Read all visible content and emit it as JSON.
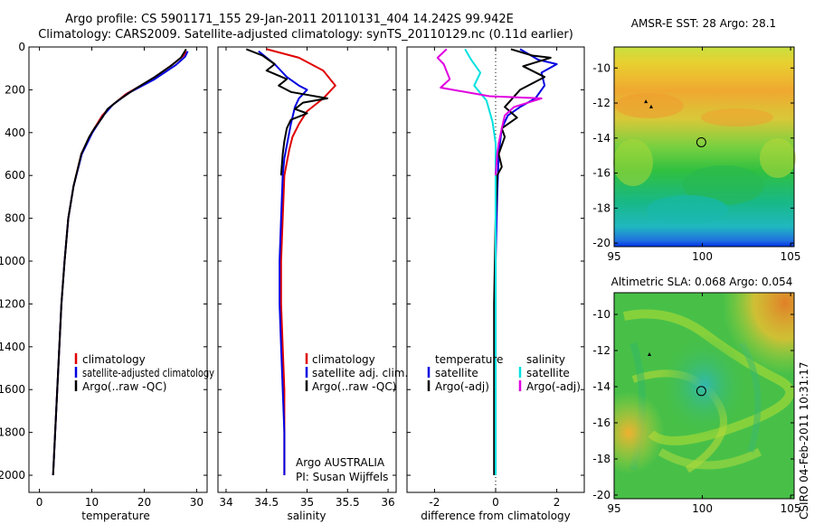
{
  "figure": {
    "title_line1": "Argo profile: CS 5901171_155 29-Jan-2011 20110131_404 14.242S 99.942E",
    "title_line2": "Climatology: CARS2009. Satellite-adjusted climatology: synTS_20110129.nc (0.11d earlier)",
    "credit": "CSIRO 04-Feb-2011 10:31:17",
    "argo_label": "Argo AUSTRALIA",
    "pi_label": "PI: Susan Wijffels"
  },
  "colors": {
    "red": "#e00000",
    "blue": "#0000e0",
    "black": "#000000",
    "cyan": "#00e0e0",
    "magenta": "#e000e0"
  },
  "chart_data": [
    {
      "id": "temperature",
      "type": "line",
      "xlabel": "temperature",
      "xlim": [
        -2,
        32
      ],
      "ylim": [
        0,
        2080
      ],
      "xticks": [
        0,
        10,
        20,
        30
      ],
      "yticks": [
        0,
        200,
        400,
        600,
        800,
        1000,
        1200,
        1400,
        1600,
        1800,
        2000
      ],
      "legend": [
        "climatology",
        "satellite-adjusted climatology",
        "Argo(..raw -QC)"
      ],
      "series": [
        {
          "name": "climatology",
          "color": "red",
          "points": [
            [
              28.0,
              20
            ],
            [
              27.5,
              40
            ],
            [
              25.5,
              80
            ],
            [
              21.5,
              150
            ],
            [
              16.5,
              220
            ],
            [
              13.5,
              280
            ],
            [
              12.0,
              320
            ],
            [
              10.0,
              400
            ],
            [
              8.0,
              500
            ],
            [
              6.5,
              650
            ],
            [
              5.5,
              800
            ],
            [
              4.8,
              1000
            ],
            [
              4.2,
              1200
            ],
            [
              3.8,
              1400
            ],
            [
              3.4,
              1600
            ],
            [
              3.0,
              1800
            ],
            [
              2.6,
              2000
            ]
          ]
        },
        {
          "name": "satellite-adjusted climatology",
          "color": "blue",
          "points": [
            [
              28.3,
              20
            ],
            [
              27.8,
              45
            ],
            [
              26.0,
              85
            ],
            [
              22.0,
              150
            ],
            [
              17.0,
              215
            ],
            [
              14.0,
              270
            ],
            [
              12.2,
              320
            ],
            [
              10.1,
              400
            ],
            [
              8.1,
              500
            ],
            [
              6.5,
              650
            ],
            [
              5.5,
              800
            ],
            [
              4.8,
              1000
            ],
            [
              4.2,
              1200
            ],
            [
              3.8,
              1400
            ],
            [
              3.4,
              1600
            ],
            [
              3.0,
              1800
            ],
            [
              2.6,
              2000
            ]
          ]
        },
        {
          "name": "Argo(..raw -QC)",
          "color": "black",
          "points": [
            [
              28.0,
              10
            ],
            [
              27.0,
              50
            ],
            [
              25.0,
              90
            ],
            [
              22.0,
              140
            ],
            [
              18.0,
              200
            ],
            [
              15.0,
              250
            ],
            [
              13.0,
              290
            ],
            [
              12.0,
              330
            ],
            [
              10.5,
              380
            ],
            [
              9.5,
              420
            ],
            [
              8.0,
              500
            ],
            [
              6.5,
              650
            ],
            [
              5.5,
              800
            ],
            [
              4.8,
              1000
            ],
            [
              4.2,
              1200
            ],
            [
              3.8,
              1400
            ],
            [
              3.4,
              1600
            ],
            [
              3.0,
              1800
            ],
            [
              2.6,
              2000
            ]
          ]
        }
      ]
    },
    {
      "id": "salinity",
      "type": "line",
      "xlabel": "salinity",
      "xlim": [
        33.9,
        36.1
      ],
      "ylim": [
        0,
        2080
      ],
      "xticks": [
        34,
        34.5,
        35,
        35.5,
        36
      ],
      "yticks": [
        0,
        200,
        400,
        600,
        800,
        1000,
        1200,
        1400,
        1600,
        1800,
        2000
      ],
      "legend": [
        "climatology",
        "satellite adj. clim.",
        "Argo(..raw -QC)"
      ],
      "series": [
        {
          "name": "climatology",
          "color": "red",
          "points": [
            [
              34.5,
              10
            ],
            [
              34.9,
              50
            ],
            [
              35.2,
              110
            ],
            [
              35.35,
              180
            ],
            [
              35.2,
              240
            ],
            [
              35.0,
              300
            ],
            [
              34.9,
              360
            ],
            [
              34.82,
              420
            ],
            [
              34.78,
              480
            ],
            [
              34.72,
              600
            ],
            [
              34.7,
              800
            ],
            [
              34.68,
              1000
            ],
            [
              34.68,
              1200
            ],
            [
              34.7,
              1400
            ],
            [
              34.72,
              1600
            ],
            [
              34.72,
              1800
            ],
            [
              34.72,
              2000
            ]
          ]
        },
        {
          "name": "satellite adj. clim.",
          "color": "blue",
          "points": [
            [
              34.4,
              20
            ],
            [
              34.6,
              80
            ],
            [
              34.75,
              140
            ],
            [
              34.9,
              180
            ],
            [
              35.0,
              200
            ],
            [
              34.9,
              240
            ],
            [
              34.85,
              280
            ],
            [
              34.8,
              360
            ],
            [
              34.76,
              440
            ],
            [
              34.72,
              520
            ],
            [
              34.7,
              600
            ],
            [
              34.68,
              800
            ],
            [
              34.66,
              1000
            ],
            [
              34.66,
              1200
            ],
            [
              34.68,
              1400
            ],
            [
              34.7,
              1600
            ],
            [
              34.72,
              1800
            ],
            [
              34.72,
              2000
            ]
          ]
        },
        {
          "name": "Argo(..raw -QC)",
          "color": "black",
          "points": [
            [
              34.25,
              10
            ],
            [
              34.45,
              40
            ],
            [
              34.6,
              80
            ],
            [
              34.5,
              110
            ],
            [
              34.75,
              150
            ],
            [
              34.65,
              180
            ],
            [
              34.8,
              210
            ],
            [
              35.25,
              240
            ],
            [
              34.95,
              260
            ],
            [
              34.85,
              290
            ],
            [
              35.0,
              310
            ],
            [
              34.8,
              340
            ],
            [
              34.75,
              380
            ],
            [
              34.72,
              440
            ],
            [
              34.7,
              500
            ],
            [
              34.68,
              600
            ]
          ]
        }
      ]
    },
    {
      "id": "difference",
      "type": "line",
      "xlabel": "difference from climatology",
      "xlim": [
        -2.9,
        2.9
      ],
      "ylim": [
        0,
        2080
      ],
      "xticks": [
        -2,
        0,
        2
      ],
      "yticks": [
        0,
        200,
        400,
        600,
        800,
        1000,
        1200,
        1400,
        1600,
        1800,
        2000
      ],
      "legend_headers": [
        "temperature",
        "salinity"
      ],
      "legend": [
        "satellite",
        "Argo(-adj)",
        "satellite",
        "Argo(-adj)"
      ],
      "series": [
        {
          "name": "temperature satellite",
          "color": "blue",
          "points": [
            [
              0.8,
              10
            ],
            [
              1.4,
              60
            ],
            [
              2.0,
              80
            ],
            [
              1.5,
              120
            ],
            [
              1.6,
              180
            ],
            [
              1.3,
              240
            ],
            [
              0.8,
              280
            ],
            [
              0.4,
              320
            ],
            [
              0.2,
              380
            ],
            [
              0.1,
              500
            ],
            [
              0.05,
              700
            ],
            [
              0.0,
              1000
            ],
            [
              0.0,
              1500
            ],
            [
              0.0,
              2000
            ]
          ]
        },
        {
          "name": "temperature Argo(-adj)",
          "color": "black",
          "points": [
            [
              0.5,
              10
            ],
            [
              1.2,
              40
            ],
            [
              1.8,
              50
            ],
            [
              0.9,
              90
            ],
            [
              1.6,
              140
            ],
            [
              0.8,
              200
            ],
            [
              0.3,
              280
            ],
            [
              0.7,
              330
            ],
            [
              0.2,
              380
            ],
            [
              0.3,
              420
            ],
            [
              0.1,
              500
            ],
            [
              0.2,
              560
            ],
            [
              0.05,
              600
            ],
            [
              0.0,
              800
            ],
            [
              -0.05,
              1200
            ],
            [
              -0.05,
              1600
            ],
            [
              -0.05,
              2000
            ]
          ]
        },
        {
          "name": "salinity satellite",
          "color": "cyan",
          "points": [
            [
              -1.0,
              10
            ],
            [
              -0.8,
              60
            ],
            [
              -0.5,
              120
            ],
            [
              -0.7,
              180
            ],
            [
              -0.3,
              250
            ],
            [
              -0.1,
              350
            ],
            [
              0.0,
              450
            ],
            [
              0.0,
              600
            ],
            [
              0.0,
              1000
            ],
            [
              0.0,
              2000
            ]
          ]
        },
        {
          "name": "salinity Argo(-adj)",
          "color": "magenta",
          "points": [
            [
              -1.6,
              10
            ],
            [
              -1.9,
              50
            ],
            [
              -1.7,
              80
            ],
            [
              -1.5,
              150
            ],
            [
              -1.8,
              190
            ],
            [
              -0.2,
              230
            ],
            [
              1.5,
              240
            ],
            [
              0.6,
              280
            ],
            [
              0.3,
              320
            ],
            [
              0.2,
              380
            ],
            [
              0.1,
              450
            ],
            [
              0.05,
              500
            ],
            [
              0.0,
              600
            ]
          ]
        }
      ]
    },
    {
      "id": "sst_map",
      "type": "heatmap",
      "title": "AMSR-E SST: 28 Argo: 28.1",
      "xlim": [
        95,
        105.2
      ],
      "ylim": [
        -20.2,
        -8.8
      ],
      "xticks": [
        95,
        100,
        105
      ],
      "yticks": [
        -10,
        -12,
        -14,
        -16,
        -18,
        -20
      ],
      "argo_position": [
        99.94,
        -14.24
      ],
      "track_points": [
        [
          96.8,
          -11.9
        ],
        [
          97.1,
          -12.2
        ]
      ]
    },
    {
      "id": "sla_map",
      "type": "heatmap",
      "title": "Altimetric SLA: 0.068 Argo: 0.054",
      "xlim": [
        95,
        105.2
      ],
      "ylim": [
        -20.2,
        -8.8
      ],
      "xticks": [
        95,
        100,
        105
      ],
      "yticks": [
        -10,
        -12,
        -14,
        -16,
        -18,
        -20
      ],
      "argo_position": [
        99.94,
        -14.24
      ],
      "track_points": [
        [
          97.0,
          -12.2
        ]
      ]
    }
  ]
}
